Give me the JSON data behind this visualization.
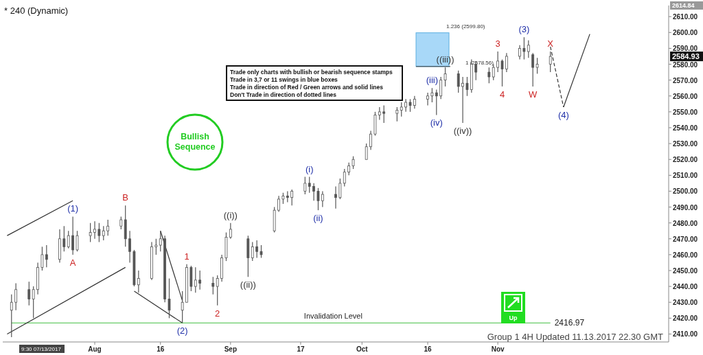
{
  "chart_data": {
    "type": "candlestick",
    "title": "* 240 (Dynamic)",
    "x": [
      "2017-07-13",
      "2017-07-14",
      "2017-07-17",
      "2017-07-18",
      "2017-07-19",
      "2017-07-20",
      "2017-07-21",
      "2017-07-24",
      "2017-07-25",
      "2017-07-26",
      "2017-07-27",
      "2017-07-28",
      "2017-07-31",
      "2017-08-01",
      "2017-08-02",
      "2017-08-03",
      "2017-08-04",
      "2017-08-07",
      "2017-08-08",
      "2017-08-09",
      "2017-08-10",
      "2017-08-11",
      "2017-08-14",
      "2017-08-15",
      "2017-08-16",
      "2017-08-17",
      "2017-08-18",
      "2017-08-21",
      "2017-08-22",
      "2017-08-23",
      "2017-08-24",
      "2017-08-25",
      "2017-08-28",
      "2017-08-29",
      "2017-08-30",
      "2017-08-31",
      "2017-09-01",
      "2017-09-05",
      "2017-09-06",
      "2017-09-07",
      "2017-09-08",
      "2017-09-11",
      "2017-09-12",
      "2017-09-13",
      "2017-09-14",
      "2017-09-15",
      "2017-09-18",
      "2017-09-19",
      "2017-09-20",
      "2017-09-21",
      "2017-09-22",
      "2017-09-25",
      "2017-09-26",
      "2017-09-27",
      "2017-09-28",
      "2017-09-29",
      "2017-10-02",
      "2017-10-03",
      "2017-10-04",
      "2017-10-05",
      "2017-10-06",
      "2017-10-09",
      "2017-10-10",
      "2017-10-11",
      "2017-10-12",
      "2017-10-13",
      "2017-10-16",
      "2017-10-17",
      "2017-10-18",
      "2017-10-19",
      "2017-10-20",
      "2017-10-23",
      "2017-10-24",
      "2017-10-25",
      "2017-10-26",
      "2017-10-27",
      "2017-10-30",
      "2017-10-31",
      "2017-11-01",
      "2017-11-02",
      "2017-11-03",
      "2017-11-06",
      "2017-11-07",
      "2017-11-08",
      "2017-11-09",
      "2017-11-10",
      "2017-11-13"
    ],
    "ohlc": [
      [
        2425,
        2435,
        2408,
        2430
      ],
      [
        2430,
        2442,
        2425,
        2438
      ],
      [
        2438,
        2443,
        2428,
        2432
      ],
      [
        2432,
        2440,
        2420,
        2438
      ],
      [
        2438,
        2455,
        2435,
        2452
      ],
      [
        2452,
        2465,
        2450,
        2460
      ],
      [
        2460,
        2466,
        2452,
        2457
      ],
      [
        2457,
        2476,
        2455,
        2470
      ],
      [
        2470,
        2478,
        2462,
        2465
      ],
      [
        2465,
        2475,
        2464,
        2472
      ],
      [
        2472,
        2484,
        2460,
        2463
      ],
      [
        2463,
        2475,
        2462,
        2472
      ],
      [
        2472,
        2480,
        2468,
        2474
      ],
      [
        2474,
        2481,
        2470,
        2476
      ],
      [
        2476,
        2480,
        2468,
        2472
      ],
      [
        2472,
        2478,
        2469,
        2475
      ],
      [
        2475,
        2482,
        2472,
        2478
      ],
      [
        2478,
        2484,
        2476,
        2482
      ],
      [
        2482,
        2491,
        2465,
        2470
      ],
      [
        2470,
        2475,
        2455,
        2462
      ],
      [
        2462,
        2463,
        2440,
        2441
      ],
      [
        2441,
        2450,
        2436,
        2445
      ],
      [
        2445,
        2468,
        2444,
        2465
      ],
      [
        2465,
        2470,
        2460,
        2466
      ],
      [
        2466,
        2475,
        2462,
        2470
      ],
      [
        2470,
        2472,
        2430,
        2432
      ],
      [
        2432,
        2445,
        2420,
        2425
      ],
      [
        2425,
        2437,
        2417,
        2430
      ],
      [
        2430,
        2454,
        2430,
        2452
      ],
      [
        2452,
        2453,
        2437,
        2440
      ],
      [
        2440,
        2452,
        2436,
        2444
      ],
      [
        2444,
        2450,
        2438,
        2442
      ],
      [
        2442,
        2446,
        2435,
        2440
      ],
      [
        2440,
        2447,
        2428,
        2445
      ],
      [
        2445,
        2460,
        2443,
        2458
      ],
      [
        2458,
        2474,
        2456,
        2471
      ],
      [
        2471,
        2480,
        2470,
        2476
      ],
      [
        2470,
        2472,
        2446,
        2458
      ],
      [
        2458,
        2468,
        2456,
        2465
      ],
      [
        2465,
        2469,
        2458,
        2462
      ],
      [
        2462,
        2466,
        2458,
        2460
      ],
      [
        2475,
        2490,
        2474,
        2488
      ],
      [
        2488,
        2497,
        2487,
        2495
      ],
      [
        2495,
        2499,
        2492,
        2497
      ],
      [
        2497,
        2500,
        2493,
        2496
      ],
      [
        2496,
        2501,
        2491,
        2500
      ],
      [
        2500,
        2509,
        2498,
        2505
      ],
      [
        2505,
        2509,
        2499,
        2503
      ],
      [
        2503,
        2505,
        2494,
        2500
      ],
      [
        2500,
        2502,
        2488,
        2494
      ],
      [
        2494,
        2500,
        2490,
        2498
      ],
      [
        2498,
        2503,
        2489,
        2496
      ],
      [
        2496,
        2508,
        2495,
        2505
      ],
      [
        2505,
        2514,
        2503,
        2512
      ],
      [
        2512,
        2518,
        2510,
        2516
      ],
      [
        2516,
        2522,
        2514,
        2520
      ],
      [
        2520,
        2530,
        2520,
        2528
      ],
      [
        2528,
        2538,
        2526,
        2536
      ],
      [
        2536,
        2550,
        2535,
        2548
      ],
      [
        2548,
        2553,
        2545,
        2550
      ],
      [
        2550,
        2554,
        2543,
        2549
      ],
      [
        2549,
        2553,
        2544,
        2551
      ],
      [
        2551,
        2556,
        2547,
        2553
      ],
      [
        2553,
        2558,
        2550,
        2556
      ],
      [
        2556,
        2558,
        2550,
        2554
      ],
      [
        2554,
        2560,
        2552,
        2558
      ],
      [
        2558,
        2562,
        2554,
        2560
      ],
      [
        2560,
        2565,
        2556,
        2562
      ],
      [
        2562,
        2564,
        2548,
        2560
      ],
      [
        2560,
        2572,
        2558,
        2570
      ],
      [
        2570,
        2578,
        2566,
        2574
      ],
      [
        2574,
        2576,
        2562,
        2566
      ],
      [
        2566,
        2572,
        2543,
        2568
      ],
      [
        2568,
        2572,
        2560,
        2564
      ],
      [
        2564,
        2583,
        2562,
        2580
      ],
      [
        2580,
        2582,
        2570,
        2575
      ],
      [
        2575,
        2578,
        2568,
        2572
      ],
      [
        2572,
        2580,
        2570,
        2578
      ],
      [
        2578,
        2588,
        2575,
        2582
      ],
      [
        2582,
        2583,
        2566,
        2577
      ],
      [
        2577,
        2587,
        2575,
        2585
      ],
      [
        2585,
        2592,
        2583,
        2590
      ],
      [
        2590,
        2597,
        2583,
        2588
      ],
      [
        2588,
        2595,
        2584,
        2592
      ],
      [
        2586,
        2587,
        2566,
        2578
      ],
      [
        2578,
        2584,
        2574,
        2580
      ],
      [
        2580,
        2588,
        2575,
        2584.93
      ]
    ],
    "color": "#555555",
    "series": [
      {
        "type": "line",
        "color": "#333333",
        "x": [
          "2017-07-12",
          "2017-07-27"
        ],
        "values": [
          2472,
          2494
        ]
      },
      {
        "type": "line",
        "color": "#333333",
        "x": [
          "2017-07-12",
          "2017-08-08"
        ],
        "values": [
          2410,
          2452
        ]
      },
      {
        "type": "line",
        "color": "#333333",
        "x": [
          "2017-08-10",
          "2017-08-21"
        ],
        "values": [
          2437,
          2417
        ]
      },
      {
        "type": "line",
        "color": "#333333",
        "x": [
          "2017-08-16",
          "2017-08-21"
        ],
        "values": [
          2475,
          2431
        ]
      },
      {
        "type": "line",
        "color": "#333333",
        "line_style": "dashed",
        "x": [
          "2017-11-13",
          "2017-11-16"
        ],
        "values": [
          2591,
          2553
        ]
      },
      {
        "type": "line",
        "color": "#333333",
        "x": [
          "2017-11-16",
          "2017-11-22"
        ],
        "values": [
          2553,
          2599
        ]
      }
    ],
    "xlim": [
      "2017-07-11",
      "2017-12-10"
    ],
    "xticks": [
      {
        "value": "2017-08-01",
        "label": "Aug"
      },
      {
        "value": "2017-08-16",
        "label": "16"
      },
      {
        "value": "2017-09-01",
        "label": "Sep"
      },
      {
        "value": "2017-09-17",
        "label": "17"
      },
      {
        "value": "2017-10-01",
        "label": "Oct"
      },
      {
        "value": "2017-10-16",
        "label": "16"
      },
      {
        "value": "2017-11-01",
        "label": "Nov"
      }
    ],
    "ylim": [
      2405,
      2617
    ],
    "yticks": [
      {
        "value": 2410,
        "label": "2410.00"
      },
      {
        "value": 2420,
        "label": "2420.00"
      },
      {
        "value": 2430,
        "label": "2430.00"
      },
      {
        "value": 2440,
        "label": "2440.00"
      },
      {
        "value": 2450,
        "label": "2450.00"
      },
      {
        "value": 2460,
        "label": "2460.00"
      },
      {
        "value": 2470,
        "label": "2470.00"
      },
      {
        "value": 2480,
        "label": "2480.00"
      },
      {
        "value": 2490,
        "label": "2490.00"
      },
      {
        "value": 2500,
        "label": "2500.00"
      },
      {
        "value": 2510,
        "label": "2510.00"
      },
      {
        "value": 2520,
        "label": "2520.00"
      },
      {
        "value": 2530,
        "label": "2530.00"
      },
      {
        "value": 2540,
        "label": "2540.00"
      },
      {
        "value": 2550,
        "label": "2550.00"
      },
      {
        "value": 2560,
        "label": "2560.00"
      },
      {
        "value": 2570,
        "label": "2570.00"
      },
      {
        "value": 2580,
        "label": "2580.00"
      },
      {
        "value": 2590,
        "label": "2590.00"
      },
      {
        "value": 2600,
        "label": "2600.00"
      },
      {
        "value": 2610,
        "label": "2610.00"
      }
    ],
    "grid": false,
    "ref_lines": [
      {
        "axis": "y",
        "value": 2416.97,
        "label": "Invalidation Level",
        "color": "#66cc66"
      }
    ],
    "bands": [
      {
        "axis": "y",
        "from": 2578.56,
        "to": 2599.8,
        "color": "#a8d8f8"
      }
    ],
    "annotations": [
      "Trade only charts with bullish or bearish sequence stamps",
      "Trade in 3,7 or 11 swings in blue boxes",
      "Trade in direction of Red / Green arrows and solid lines",
      "Don't Trade in direction of dotted lines",
      "Bullish Sequence",
      "Up",
      "Group 1 4H Updated  11.13.2017 22.30 GMT",
      "9:30 07/13/2017",
      "2614.84",
      "2584.93",
      "1.236 (2599.80)",
      "1 (2578.56)",
      {
        "text": "2416.97",
        "x": "2017-11-13",
        "y": 2416.97
      },
      {
        "text": "(1)",
        "x": "2017-07-27",
        "y": 2484
      },
      {
        "text": "A",
        "x": "2017-07-27",
        "y": 2460
      },
      {
        "text": "B",
        "x": "2017-08-08",
        "y": 2491
      },
      {
        "text": "(2)",
        "x": "2017-08-21",
        "y": 2417
      },
      {
        "text": "1",
        "x": "2017-08-22",
        "y": 2454
      },
      {
        "text": "2",
        "x": "2017-08-29",
        "y": 2428
      },
      {
        "text": "((i))",
        "x": "2017-09-01",
        "y": 2480
      },
      {
        "text": "((ii))",
        "x": "2017-09-05",
        "y": 2446
      },
      {
        "text": "(i)",
        "x": "2017-09-19",
        "y": 2509
      },
      {
        "text": "(ii)",
        "x": "2017-09-21",
        "y": 2488
      },
      {
        "text": "(iii)",
        "x": "2017-10-17",
        "y": 2565
      },
      {
        "text": "(iv)",
        "x": "2017-10-18",
        "y": 2548
      },
      {
        "text": "((iii))",
        "x": "2017-10-20",
        "y": 2578
      },
      {
        "text": "((iv))",
        "x": "2017-10-24",
        "y": 2543
      },
      {
        "text": "3",
        "x": "2017-11-01",
        "y": 2588
      },
      {
        "text": "4",
        "x": "2017-11-02",
        "y": 2566
      },
      {
        "text": "(3)",
        "x": "2017-11-07",
        "y": 2597
      },
      {
        "text": "W",
        "x": "2017-11-09",
        "y": 2566
      },
      {
        "text": "X",
        "x": "2017-11-13",
        "y": 2588
      },
      {
        "text": "(4)",
        "x": "2017-11-16",
        "y": 2553
      }
    ]
  }
}
